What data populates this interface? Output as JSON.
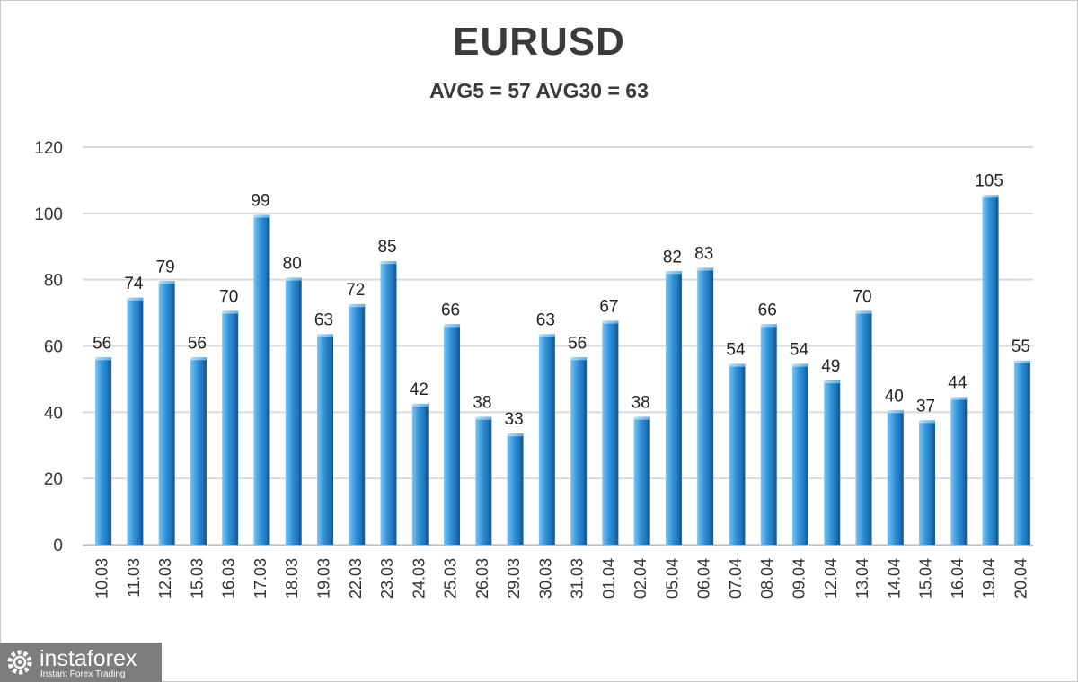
{
  "chart_data": {
    "type": "bar",
    "title": "EURUSD",
    "subtitle": "AVG5 = 57 AVG30 = 63",
    "categories": [
      "10.03",
      "11.03",
      "12.03",
      "15.03",
      "16.03",
      "17.03",
      "18.03",
      "19.03",
      "22.03",
      "23.03",
      "24.03",
      "25.03",
      "26.03",
      "29.03",
      "30.03",
      "31.03",
      "01.04",
      "02.04",
      "05.04",
      "06.04",
      "07.04",
      "08.04",
      "09.04",
      "12.04",
      "13.04",
      "14.04",
      "15.04",
      "16.04",
      "19.04",
      "20.04"
    ],
    "values": [
      56,
      74,
      79,
      56,
      70,
      99,
      80,
      63,
      72,
      85,
      42,
      66,
      38,
      33,
      63,
      56,
      67,
      38,
      82,
      83,
      54,
      66,
      54,
      49,
      70,
      40,
      37,
      44,
      105,
      55
    ],
    "yticks": [
      "0",
      "20",
      "40",
      "60",
      "80",
      "100",
      "120"
    ],
    "ylim": [
      0,
      120
    ],
    "grid": true,
    "data_labels": true,
    "bar_color": "#2f8fd6"
  },
  "logo": {
    "name": "instaforex",
    "tagline": "Instant Forex Trading"
  }
}
